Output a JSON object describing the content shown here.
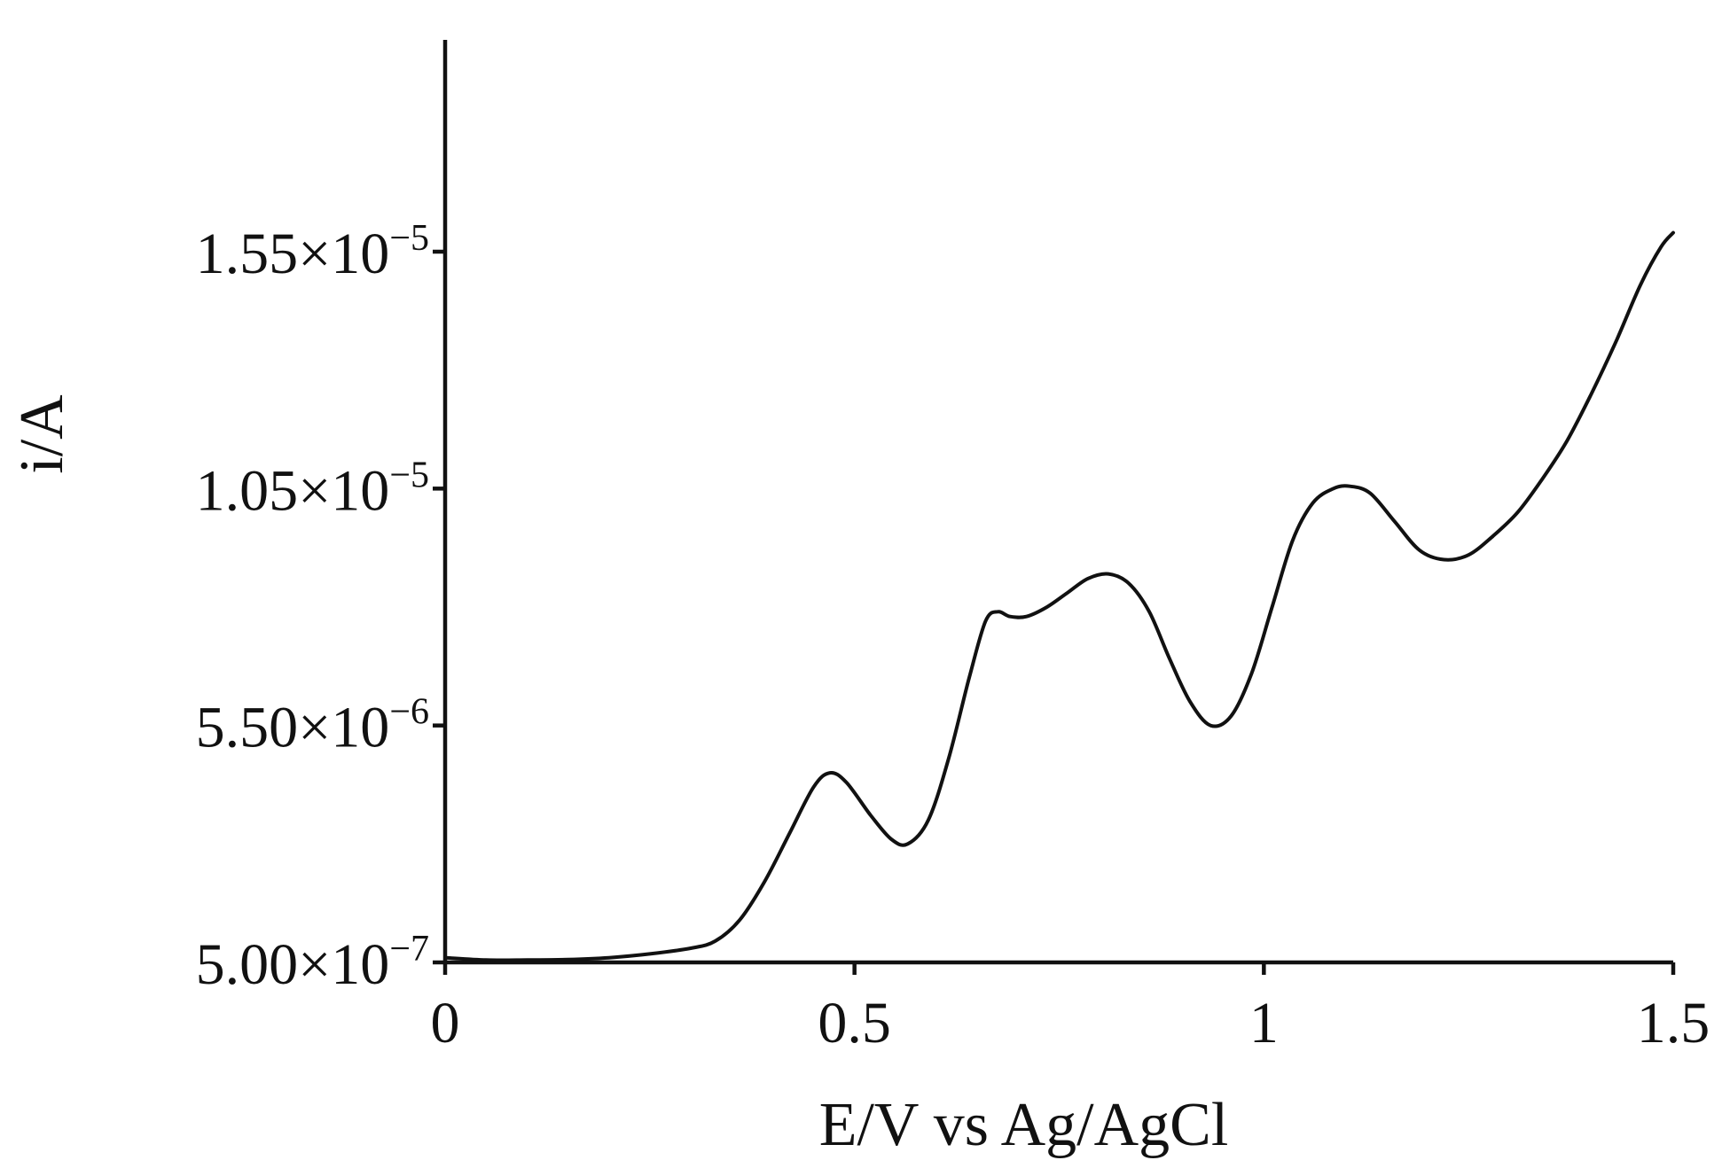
{
  "chart_data": {
    "type": "line",
    "title": "",
    "xlabel": "E/V vs Ag/AgCl",
    "ylabel": "i/A",
    "xlim": [
      0,
      1.5
    ],
    "ylim": [
      5e-07,
      1.9e-05
    ],
    "grid": false,
    "x_ticks": [
      {
        "value": 0,
        "label": "0"
      },
      {
        "value": 0.5,
        "label": "0.5"
      },
      {
        "value": 1,
        "label": "1"
      },
      {
        "value": 1.5,
        "label": "1.5"
      }
    ],
    "y_ticks": [
      {
        "value": 5e-07,
        "label": "5.00×10",
        "exp": "−7"
      },
      {
        "value": 5.5e-06,
        "label": "5.50×10",
        "exp": "−6"
      },
      {
        "value": 1.05e-05,
        "label": "1.05×10",
        "exp": "−5"
      },
      {
        "value": 1.55e-05,
        "label": "1.55×10",
        "exp": "−5"
      }
    ],
    "series": [
      {
        "color": "#111111",
        "x": [
          0,
          0.05,
          0.1,
          0.15,
          0.2,
          0.25,
          0.3,
          0.33,
          0.36,
          0.39,
          0.42,
          0.45,
          0.47,
          0.49,
          0.52,
          0.545,
          0.565,
          0.59,
          0.615,
          0.64,
          0.66,
          0.675,
          0.69,
          0.71,
          0.735,
          0.76,
          0.785,
          0.81,
          0.835,
          0.86,
          0.885,
          0.91,
          0.935,
          0.96,
          0.985,
          1.01,
          1.035,
          1.06,
          1.085,
          1.105,
          1.13,
          1.16,
          1.19,
          1.22,
          1.25,
          1.28,
          1.31,
          1.34,
          1.37,
          1.4,
          1.43,
          1.46,
          1.485,
          1.5
        ],
        "y": [
          6e-07,
          5.5e-07,
          5.5e-07,
          5.6e-07,
          6e-07,
          6.8e-07,
          8e-07,
          9.5e-07,
          1.4e-06,
          2.2e-06,
          3.2e-06,
          4.2e-06,
          4.5e-06,
          4.3e-06,
          3.6e-06,
          3.1e-06,
          3e-06,
          3.5e-06,
          4.8e-06,
          6.5e-06,
          7.7e-06,
          7.9e-06,
          7.8e-06,
          7.8e-06,
          8e-06,
          8.3e-06,
          8.6e-06,
          8.7e-06,
          8.5e-06,
          7.9e-06,
          6.9e-06,
          6e-06,
          5.5e-06,
          5.7e-06,
          6.6e-06,
          8e-06,
          9.4e-06,
          1.02e-05,
          1.05e-05,
          1.055e-05,
          1.04e-05,
          9.8e-06,
          9.2e-06,
          9e-06,
          9.1e-06,
          9.5e-06,
          1e-05,
          1.07e-05,
          1.15e-05,
          1.25e-05,
          1.36e-05,
          1.48e-05,
          1.56e-05,
          1.59e-05
        ]
      }
    ]
  }
}
